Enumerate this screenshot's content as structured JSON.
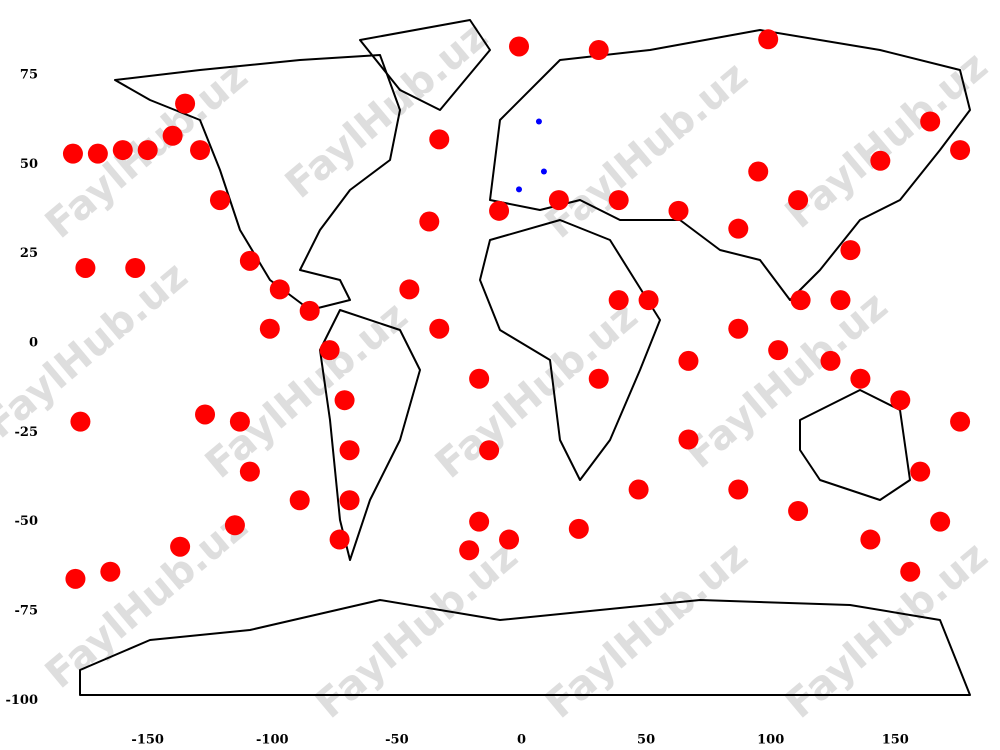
{
  "chart_data": {
    "type": "scatter",
    "xlim": [
      -186,
      186
    ],
    "ylim": [
      -105.5,
      94.6
    ],
    "xticks": [
      -150,
      -100,
      -50,
      0,
      50,
      100,
      150
    ],
    "yticks": [
      -100,
      -75,
      -50,
      -25,
      0,
      25,
      50,
      75
    ],
    "series": [
      {
        "color": "#ff0000",
        "x": [
          -180,
          -170,
          -160,
          -150,
          -140,
          -135,
          -129,
          -121,
          -109,
          -97,
          -85,
          -77,
          -71,
          -69,
          -69,
          -73,
          -113,
          -109,
          -89,
          -101,
          -33,
          -37,
          -45,
          -33,
          -17,
          -13,
          -17,
          -21,
          -5,
          23,
          47,
          67,
          67,
          51,
          87,
          111,
          140,
          156,
          -1,
          31,
          99,
          -9,
          15,
          39,
          63,
          87,
          111,
          95,
          144,
          132,
          128,
          136,
          152,
          176,
          168,
          160,
          103,
          124,
          112,
          87,
          164,
          176,
          31,
          39,
          -175,
          -155,
          -177,
          -179,
          -165,
          -137,
          -115,
          -127
        ],
        "y": [
          53,
          53,
          54,
          54,
          58,
          67,
          54,
          40,
          23,
          15,
          9,
          -2,
          -16,
          -30,
          -44,
          -55,
          -22,
          -36,
          -44,
          4,
          57,
          34,
          15,
          4,
          -10,
          -30,
          -50,
          -58,
          -55,
          -52,
          -41,
          -27,
          -5,
          12,
          -41,
          -47,
          -55,
          -64,
          83,
          82,
          85,
          37,
          40,
          40,
          37,
          32,
          40,
          48,
          51,
          26,
          12,
          -10,
          -16,
          -22,
          -50,
          -36,
          -2,
          -5,
          12,
          4,
          62,
          54,
          -10,
          12,
          21,
          21,
          -22,
          -66,
          -64,
          -57,
          -51,
          -20
        ]
      },
      {
        "color": "#0000ff",
        "x": [
          7,
          -1,
          9
        ],
        "y": [
          62,
          43,
          48
        ]
      }
    ],
    "watermark": "FaylHub.uz"
  }
}
